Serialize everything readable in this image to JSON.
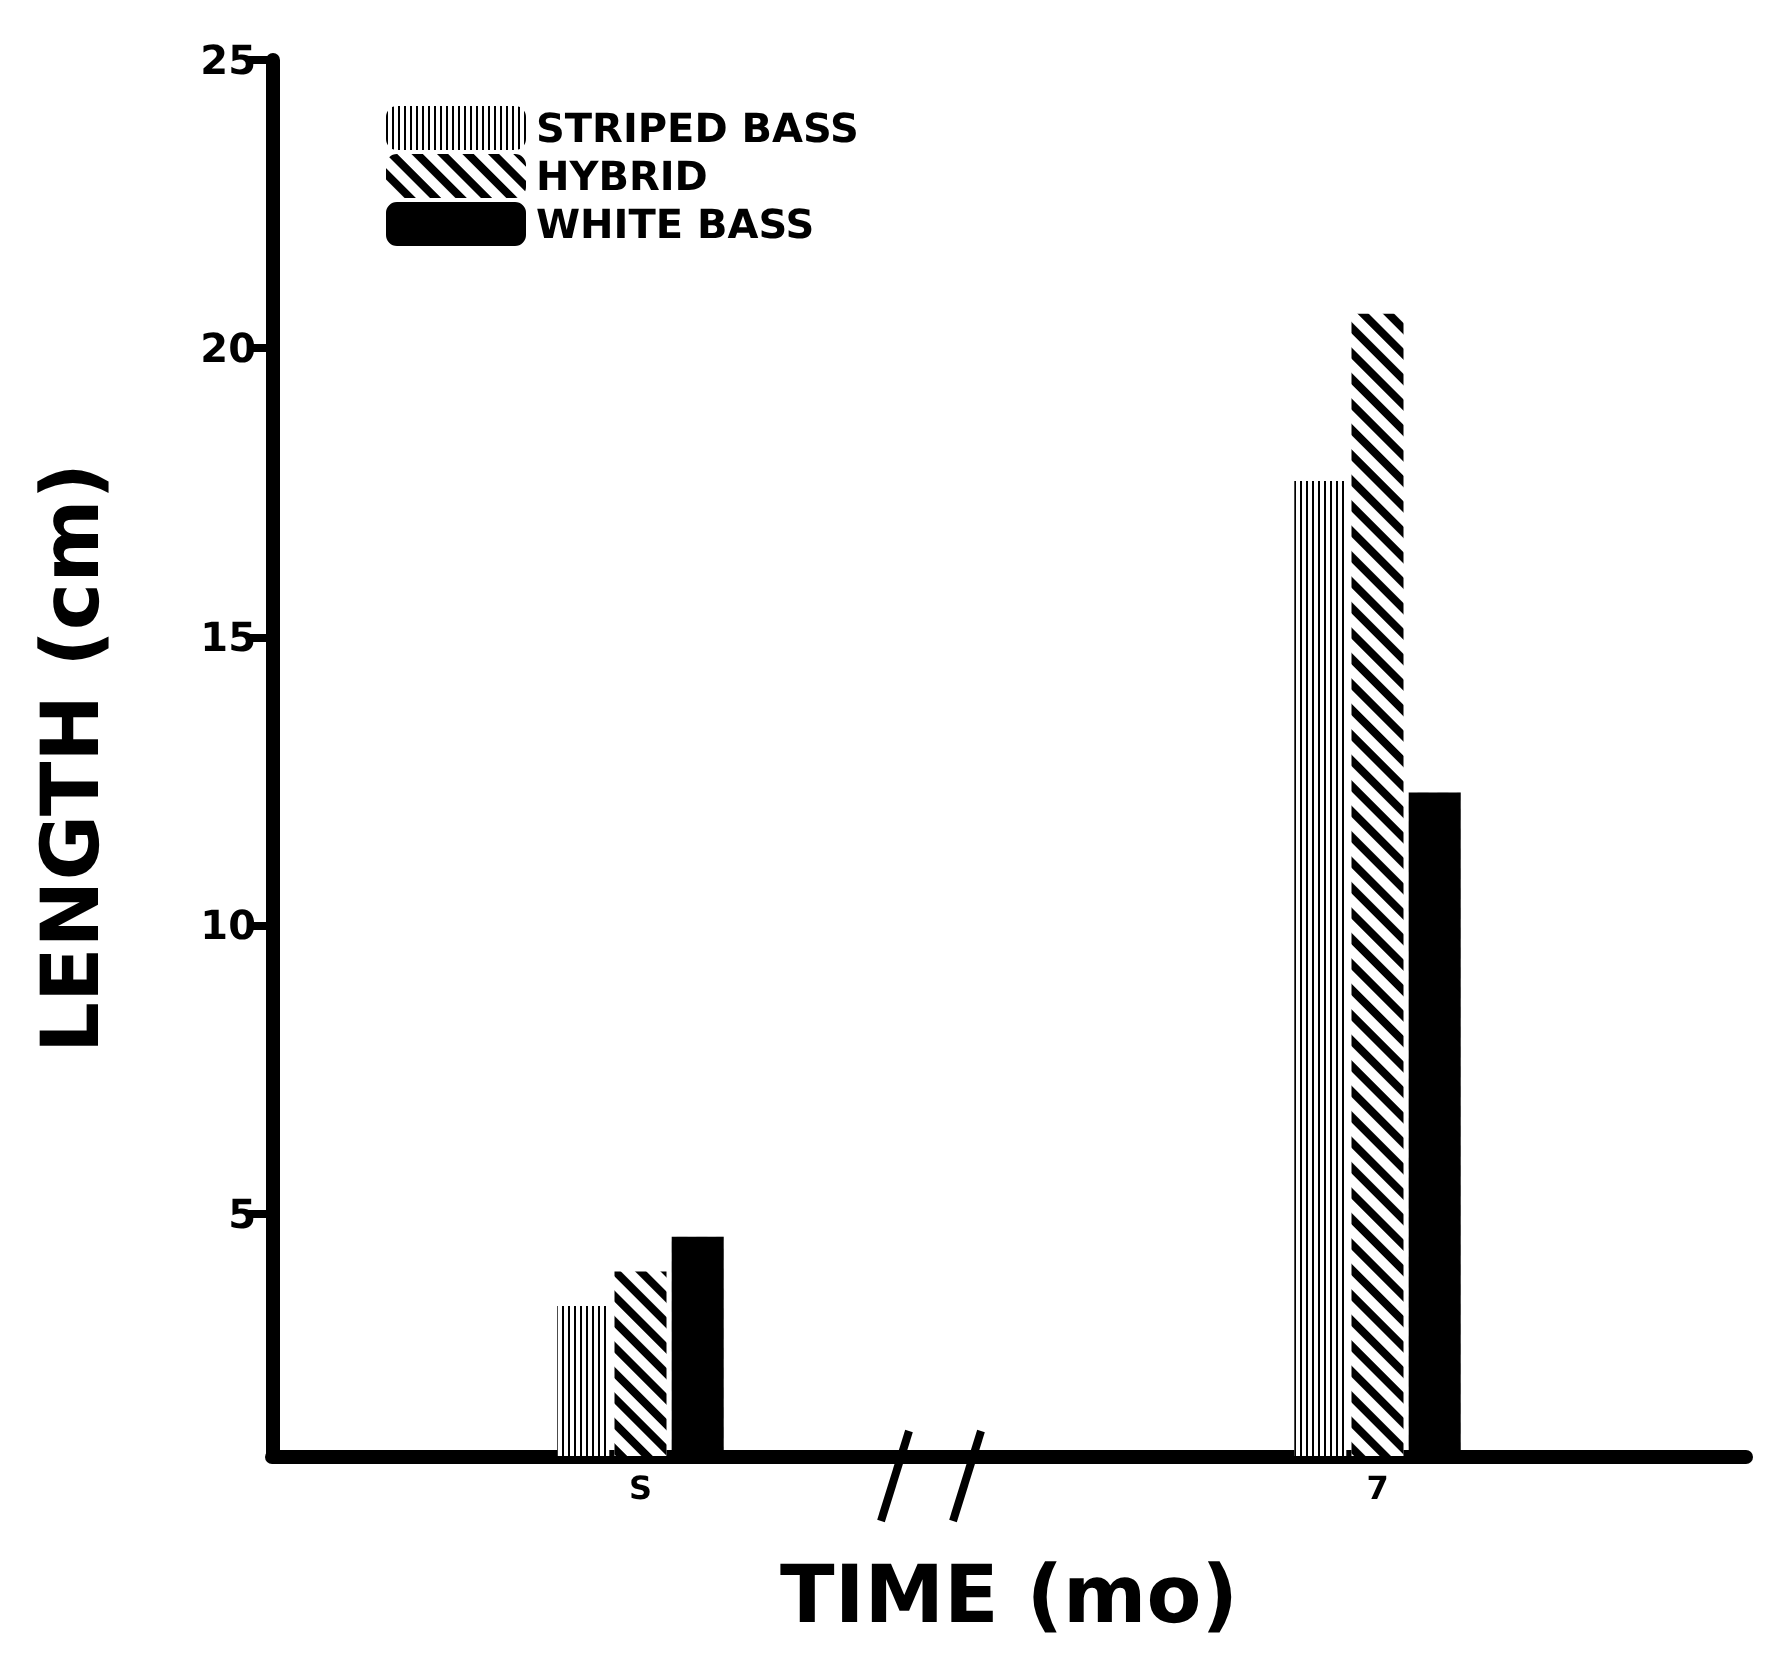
{
  "chart_data": {
    "type": "bar",
    "xlabel": "TIME (mo)",
    "ylabel": "LENGTH (cm)",
    "categories": [
      "S",
      "7"
    ],
    "series": [
      {
        "name": "STRIPED BASS",
        "color": "#000000",
        "values": [
          3.4,
          17.7
        ]
      },
      {
        "name": "HYBRID",
        "color": "#000000",
        "values": [
          4.0,
          20.6
        ]
      },
      {
        "name": "WHITE BASS",
        "color": "#000000",
        "values": [
          4.6,
          12.3
        ]
      }
    ],
    "ylim": [
      0.8,
      25
    ],
    "yticks": [
      5,
      10,
      15,
      20,
      25
    ],
    "grid": false,
    "legend": "top left"
  }
}
